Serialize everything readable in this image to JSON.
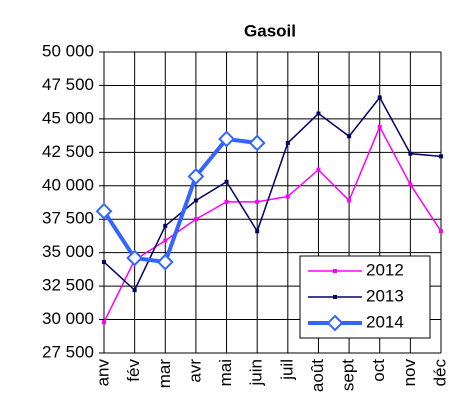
{
  "chart_data": {
    "type": "line",
    "title": "Gasoil",
    "categories": [
      "anv",
      "fév",
      "mar",
      "avr",
      "mai",
      "juin",
      "juil",
      "août",
      "sept",
      "oct",
      "nov",
      "déc"
    ],
    "series": [
      {
        "name": "2012",
        "color": "#ff00ff",
        "values": [
          29800,
          34450,
          35900,
          37500,
          38800,
          38800,
          39200,
          41200,
          38900,
          44400,
          40100,
          36600
        ]
      },
      {
        "name": "2013",
        "color": "#000066",
        "values": [
          34300,
          32200,
          37000,
          38900,
          40300,
          36600,
          43200,
          45400,
          43700,
          46600,
          42400,
          42200
        ]
      },
      {
        "name": "2014",
        "color": "#3366ff",
        "values": [
          38100,
          34600,
          34300,
          40700,
          43500,
          43200,
          null,
          null,
          null,
          null,
          null,
          null
        ]
      }
    ],
    "ylim": [
      27500,
      50000
    ],
    "yticks": [
      {
        "value": 27500,
        "label": "27 500"
      },
      {
        "value": 30000,
        "label": "30 000"
      },
      {
        "value": 32500,
        "label": "32 500"
      },
      {
        "value": 35000,
        "label": "35 000"
      },
      {
        "value": 37500,
        "label": "37 500"
      },
      {
        "value": 40000,
        "label": "40 000"
      },
      {
        "value": 42500,
        "label": "42 500"
      },
      {
        "value": 45000,
        "label": "45 000"
      },
      {
        "value": 47500,
        "label": "47 500"
      },
      {
        "value": 50000,
        "label": "50 000"
      }
    ],
    "grid": true,
    "legend": "lower right"
  }
}
